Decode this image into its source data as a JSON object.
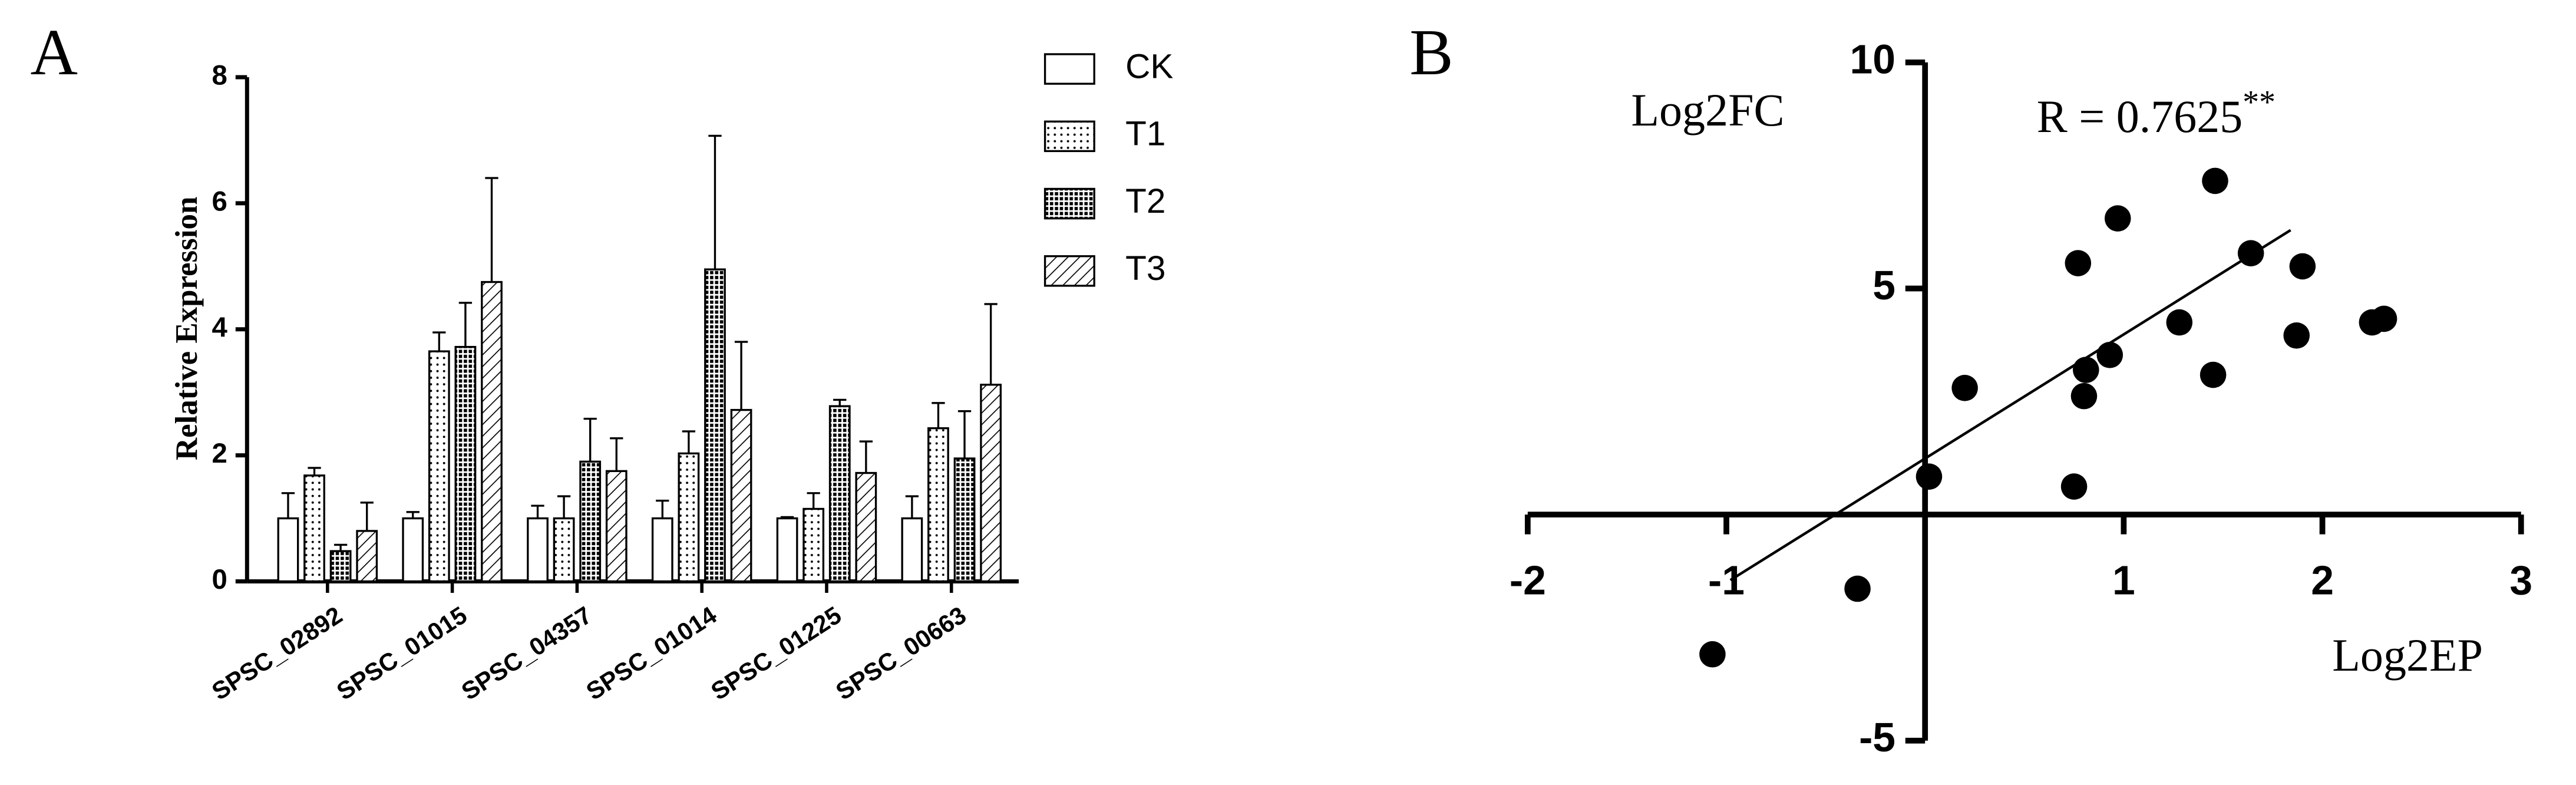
{
  "chart_data": [
    {
      "type": "bar",
      "panel_label": "A",
      "ylabel": "Relative Expression",
      "categories": [
        "SPSC_02892",
        "SPSC_01015",
        "SPSC_04357",
        "SPSC_01014",
        "SPSC_01225",
        "SPSC_00663"
      ],
      "series": [
        {
          "name": "CK",
          "pattern": "none",
          "color": "#000000",
          "values": [
            1.0,
            1.0,
            1.0,
            1.0,
            1.0,
            1.0
          ],
          "errors": [
            0.4,
            0.1,
            0.2,
            0.28,
            0.02,
            0.35
          ]
        },
        {
          "name": "T1",
          "pattern": "dots",
          "color": "#000000",
          "values": [
            1.68,
            3.65,
            1.0,
            2.03,
            1.15,
            2.43
          ],
          "errors": [
            0.12,
            0.3,
            0.35,
            0.35,
            0.25,
            0.4
          ]
        },
        {
          "name": "T2",
          "pattern": "crosshatch",
          "color": "#000000",
          "values": [
            0.48,
            3.72,
            1.9,
            4.95,
            2.78,
            1.95
          ],
          "errors": [
            0.1,
            0.7,
            0.68,
            2.12,
            0.1,
            0.75
          ]
        },
        {
          "name": "T3",
          "pattern": "hatch",
          "color": "#000000",
          "values": [
            0.8,
            4.75,
            1.75,
            2.72,
            1.72,
            3.12
          ],
          "errors": [
            0.45,
            1.65,
            0.52,
            1.08,
            0.5,
            1.28
          ]
        }
      ],
      "ylim": [
        0,
        8
      ],
      "yticks": [
        0,
        2,
        4,
        6,
        8
      ],
      "legend": "right"
    },
    {
      "type": "scatter",
      "panel_label": "B",
      "xlabel": "Log2EP",
      "ylabel": "Log2FC",
      "annotation": {
        "text": "R = 0.7625",
        "superscript": "**"
      },
      "color": "#000000",
      "x": [
        0.02,
        -0.34,
        -1.07,
        0.2,
        0.77,
        0.75,
        0.8,
        0.81,
        0.93,
        0.97,
        1.28,
        1.45,
        1.46,
        1.64,
        1.87,
        1.9,
        2.25,
        2.31
      ],
      "y": [
        0.84,
        -1.64,
        -3.09,
        2.8,
        5.56,
        0.62,
        2.62,
        3.2,
        3.53,
        6.55,
        4.25,
        3.09,
        7.38,
        5.78,
        3.96,
        5.49,
        4.25,
        4.33
      ],
      "fit_line": {
        "x": [
          -0.98,
          1.84
        ],
        "y": [
          -1.45,
          6.29
        ]
      },
      "xlim": [
        -2,
        3
      ],
      "ylim": [
        -5,
        10
      ],
      "xticks": [
        -2,
        -1,
        1,
        2,
        3
      ],
      "yticks": [
        -5,
        5,
        10
      ]
    }
  ]
}
